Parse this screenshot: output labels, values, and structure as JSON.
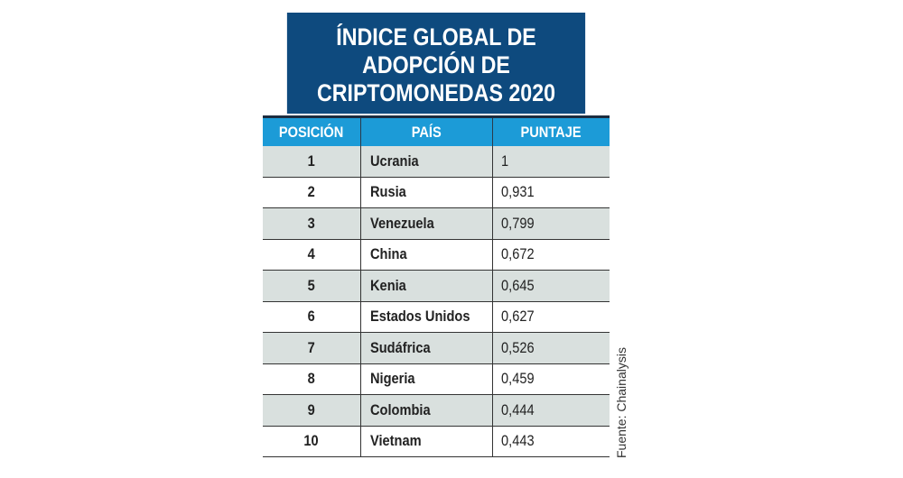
{
  "chart_data": {
    "type": "table",
    "title": "ÍNDICE GLOBAL DE ADOPCIÓN DE CRIPTOMONEDAS 2020",
    "title_lines": [
      "ÍNDICE GLOBAL DE",
      "ADOPCIÓN DE",
      "CRIPTOMONEDAS 2020"
    ],
    "columns": [
      "POSICIÓN",
      "PAÍS",
      "PUNTAJE"
    ],
    "rows": [
      [
        "1",
        "Ucrania",
        "1"
      ],
      [
        "2",
        "Rusia",
        "0,931"
      ],
      [
        "3",
        "Venezuela",
        "0,799"
      ],
      [
        "4",
        "China",
        "0,672"
      ],
      [
        "5",
        "Kenia",
        "0,645"
      ],
      [
        "6",
        "Estados Unidos",
        "0,627"
      ],
      [
        "7",
        "Sudáfrica",
        "0,526"
      ],
      [
        "8",
        "Nigeria",
        "0,459"
      ],
      [
        "9",
        "Colombia",
        "0,444"
      ],
      [
        "10",
        "Vietnam",
        "0,443"
      ]
    ],
    "source": "Fuente: Chainalysis",
    "colors": {
      "title_bg": "#0e4a7e",
      "header_bg": "#1c9bd7",
      "alt_row": "#d9e0de"
    }
  }
}
